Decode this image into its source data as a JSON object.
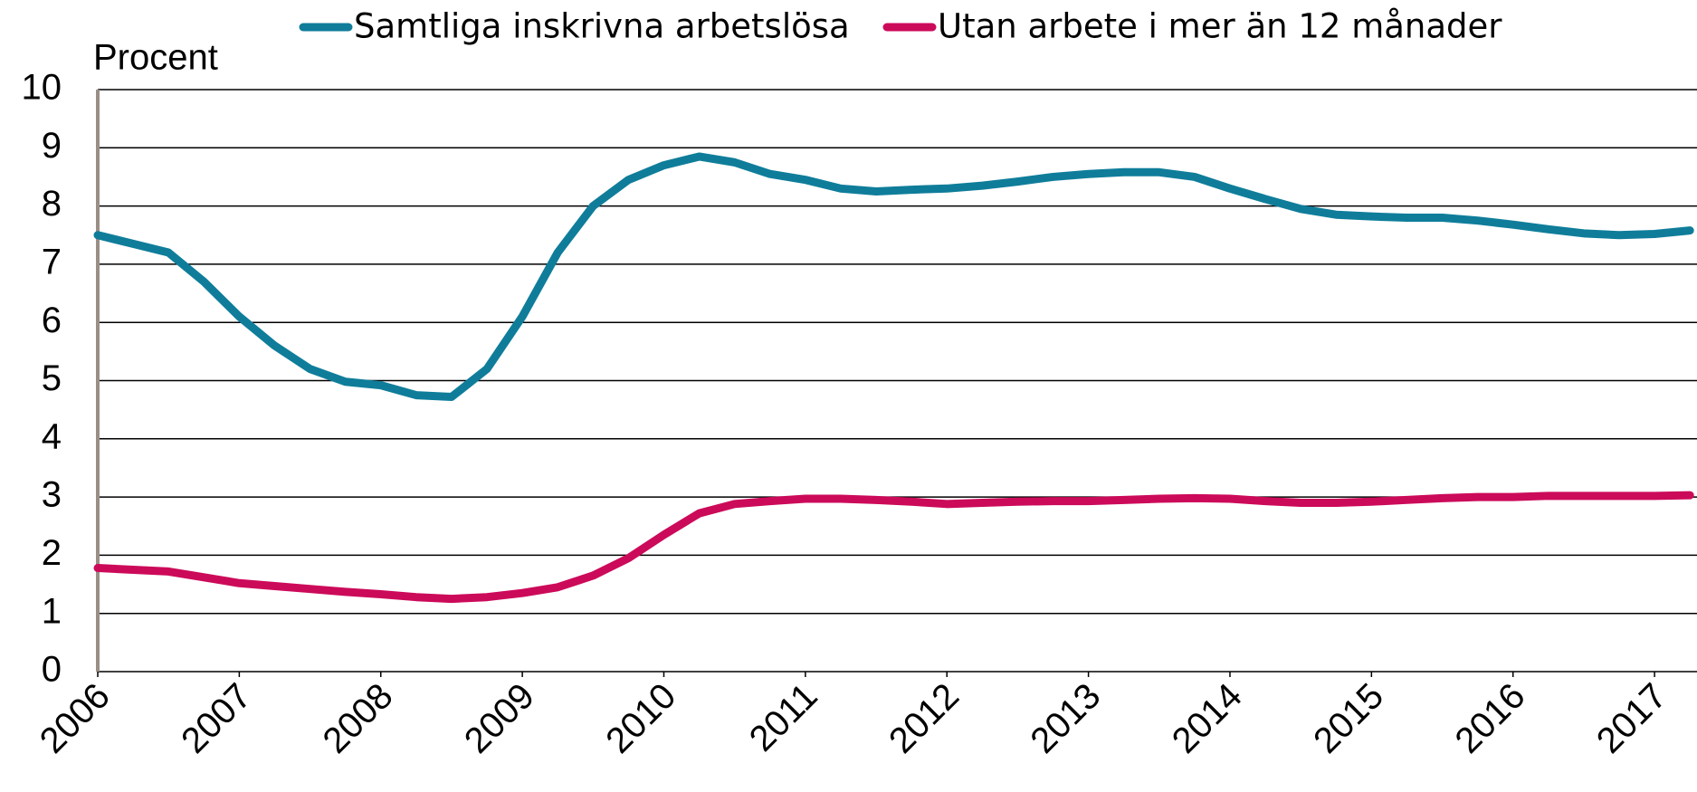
{
  "chart_data": {
    "type": "line",
    "y_label": "Procent",
    "x": [
      2006,
      2006.25,
      2006.5,
      2006.75,
      2007,
      2007.25,
      2007.5,
      2007.75,
      2008,
      2008.25,
      2008.5,
      2008.75,
      2009,
      2009.25,
      2009.5,
      2009.75,
      2010,
      2010.25,
      2010.5,
      2010.75,
      2011,
      2011.25,
      2011.5,
      2011.75,
      2012,
      2012.25,
      2012.5,
      2012.75,
      2013,
      2013.25,
      2013.5,
      2013.75,
      2014,
      2014.25,
      2014.5,
      2014.75,
      2015,
      2015.25,
      2015.5,
      2015.75,
      2016,
      2016.25,
      2016.5,
      2016.75,
      2017,
      2017.25
    ],
    "series": [
      {
        "name": "Samtliga inskrivna arbetslösa",
        "color": "#0f7d9a",
        "values": [
          7.5,
          7.35,
          7.2,
          6.7,
          6.1,
          5.6,
          5.2,
          4.98,
          4.92,
          4.75,
          4.72,
          5.2,
          6.1,
          7.2,
          8.0,
          8.45,
          8.7,
          8.85,
          8.75,
          8.55,
          8.45,
          8.3,
          8.25,
          8.28,
          8.3,
          8.35,
          8.42,
          8.5,
          8.55,
          8.58,
          8.58,
          8.5,
          8.3,
          8.12,
          7.95,
          7.85,
          7.82,
          7.8,
          7.8,
          7.75,
          7.68,
          7.6,
          7.53,
          7.5,
          7.52,
          7.58
        ]
      },
      {
        "name": "Utan arbete i mer än 12 månader",
        "color": "#cc0a5a",
        "values": [
          1.78,
          1.75,
          1.72,
          1.62,
          1.52,
          1.47,
          1.42,
          1.37,
          1.33,
          1.28,
          1.25,
          1.28,
          1.35,
          1.45,
          1.65,
          1.95,
          2.35,
          2.72,
          2.88,
          2.93,
          2.97,
          2.97,
          2.95,
          2.92,
          2.88,
          2.9,
          2.92,
          2.93,
          2.93,
          2.95,
          2.97,
          2.98,
          2.97,
          2.93,
          2.9,
          2.9,
          2.92,
          2.95,
          2.98,
          3.0,
          3.0,
          3.02,
          3.02,
          3.02,
          3.02,
          3.03
        ]
      }
    ],
    "xlim": [
      2006,
      2017.3
    ],
    "xticks": [
      2006,
      2007,
      2008,
      2009,
      2010,
      2011,
      2012,
      2013,
      2014,
      2015,
      2016,
      2017
    ],
    "ylim": [
      0,
      10
    ],
    "yticks": [
      0,
      1,
      2,
      3,
      4,
      5,
      6,
      7,
      8,
      9,
      10
    ],
    "grid": true
  }
}
